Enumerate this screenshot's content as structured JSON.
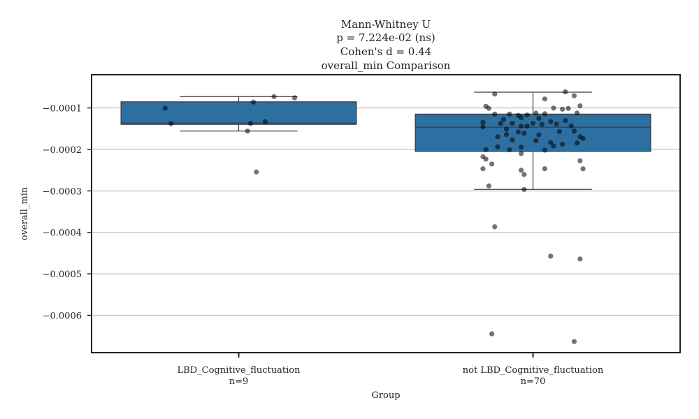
{
  "chart_data": {
    "type": "box",
    "title_lines": [
      "Mann-Whitney U",
      "p = 7.224e-02 (ns)",
      "Cohen's d = 0.44",
      "overall_min Comparison"
    ],
    "xlabel": "Group",
    "ylabel": "overall_min",
    "ylim": [
      -0.00069,
      -2e-05
    ],
    "yticks": [
      -0.0001,
      -0.0002,
      -0.0003,
      -0.0004,
      -0.0005,
      -0.0006
    ],
    "ytick_labels": [
      "−0.0001",
      "−0.0002",
      "−0.0003",
      "−0.0004",
      "−0.0005",
      "−0.0006"
    ],
    "grid": true,
    "box_color": "#2e6fa1",
    "point_color": "#000000",
    "groups": [
      {
        "label": "LBD_Cognitive_fluctuation",
        "n_label": "n=9",
        "whisker_high": -7.27e-05,
        "q3": -8.53e-05,
        "median": -0.0001365,
        "q1": -0.0001398,
        "whisker_low": -0.0001557,
        "points": [
          [
            -0.25,
            -0.0001008
          ],
          [
            0.05,
            -8.61e-05
          ],
          [
            0.12,
            -7.28e-05
          ],
          [
            0.19,
            -7.56e-05
          ],
          [
            0.04,
            -0.0001374
          ],
          [
            0.09,
            -0.0001332
          ],
          [
            -0.23,
            -0.0001378
          ],
          [
            0.03,
            -0.0001558
          ],
          [
            0.06,
            -0.0002544
          ]
        ]
      },
      {
        "label": "not LBD_Cognitive_fluctuation",
        "n_label": "n=70",
        "whisker_high": -6.21e-05,
        "q3": -0.0001149,
        "median": -0.0001465,
        "q1": -0.0002048,
        "whisker_low": -0.0002965,
        "points": [
          [
            -0.13,
            -6.65e-05
          ],
          [
            0.04,
            -7.84e-05
          ],
          [
            0.14,
            -7.05e-05
          ],
          [
            0.11,
            -6.13e-05
          ],
          [
            -0.16,
            -9.61e-05
          ],
          [
            -0.15,
            -0.000101
          ],
          [
            -0.13,
            -0.0001148
          ],
          [
            -0.08,
            -0.0001148
          ],
          [
            -0.05,
            -0.0001181
          ],
          [
            -0.02,
            -0.0001171
          ],
          [
            0.01,
            -0.0001126
          ],
          [
            0.04,
            -0.0001141
          ],
          [
            0.07,
            -0.0001005
          ],
          [
            0.1,
            -0.0001031
          ],
          [
            0.12,
            -0.0001014
          ],
          [
            0.16,
            -9.51e-05
          ],
          [
            0.15,
            -0.0001123
          ],
          [
            -0.1,
            -0.0001278
          ],
          [
            -0.04,
            -0.0001237
          ],
          [
            0.02,
            -0.0001251
          ],
          [
            0.06,
            -0.0001331
          ],
          [
            0.11,
            -0.0001306
          ],
          [
            -0.17,
            -0.000135
          ],
          [
            -0.11,
            -0.0001378
          ],
          [
            -0.07,
            -0.0001371
          ],
          [
            -0.02,
            -0.0001439
          ],
          [
            -0.04,
            -0.0001437
          ],
          [
            0.0,
            -0.0001371
          ],
          [
            0.03,
            -0.0001395
          ],
          [
            0.08,
            -0.0001389
          ],
          [
            0.13,
            -0.0001434
          ],
          [
            -0.17,
            -0.0001458
          ],
          [
            -0.09,
            -0.0001514
          ],
          [
            -0.05,
            -0.0001578
          ],
          [
            -0.03,
            -0.0001613
          ],
          [
            0.09,
            -0.0001571
          ],
          [
            0.14,
            -0.0001559
          ],
          [
            -0.12,
            -0.0001695
          ],
          [
            -0.09,
            -0.000164
          ],
          [
            0.02,
            -0.000165
          ],
          [
            0.16,
            -0.0001695
          ],
          [
            0.17,
            -0.0001738
          ],
          [
            -0.07,
            -0.0001771
          ],
          [
            0.01,
            -0.0001791
          ],
          [
            -0.12,
            -0.0001938
          ],
          [
            -0.04,
            -0.0001947
          ],
          [
            0.06,
            -0.0001834
          ],
          [
            0.1,
            -0.0001875
          ],
          [
            0.15,
            -0.0001846
          ],
          [
            -0.16,
            -0.0002007
          ],
          [
            -0.08,
            -0.0002011
          ],
          [
            0.04,
            -0.0002019
          ],
          [
            0.07,
            -0.0001919
          ],
          [
            -0.17,
            -0.0002178
          ],
          [
            -0.16,
            -0.0002234
          ],
          [
            -0.04,
            -0.00021
          ],
          [
            0.16,
            -0.0002274
          ],
          [
            -0.14,
            -0.0002352
          ],
          [
            -0.04,
            -0.0002502
          ],
          [
            -0.17,
            -0.0002467
          ],
          [
            -0.03,
            -0.0002605
          ],
          [
            0.04,
            -0.0002466
          ],
          [
            0.17,
            -0.0002468
          ],
          [
            -0.15,
            -0.0002879
          ],
          [
            -0.03,
            -0.0002966
          ],
          [
            -0.13,
            -0.0003866
          ],
          [
            0.06,
            -0.0004573
          ],
          [
            0.16,
            -0.0004642
          ],
          [
            -0.14,
            -0.0006446
          ],
          [
            0.14,
            -0.0006632
          ]
        ]
      }
    ]
  }
}
